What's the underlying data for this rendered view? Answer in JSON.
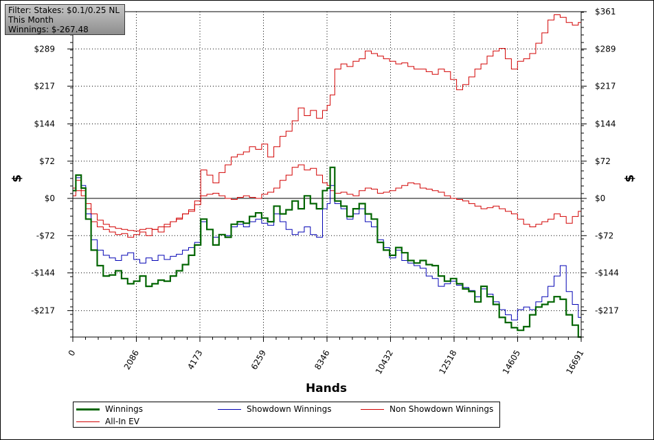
{
  "filter_box": {
    "line1": "Filter: Stakes: $0.1/0.25 NL",
    "line2": "This Month",
    "line3": "Winnings: $-267.48"
  },
  "chart_data": {
    "type": "line",
    "xlabel": "Hands",
    "ylabel_left": "$",
    "ylabel_right": "$",
    "xlim": [
      0,
      16691
    ],
    "ylim": [
      -268,
      361
    ],
    "x_ticks": [
      0,
      2086,
      4173,
      6259,
      8346,
      10432,
      12518,
      14605,
      16691
    ],
    "y_ticks": [
      -217,
      -144,
      -72,
      0,
      72,
      144,
      217,
      289,
      361
    ],
    "y_tick_labels": [
      "-$217",
      "-$144",
      "-$72",
      "$0",
      "$72",
      "$144",
      "$217",
      "$289",
      "$361"
    ],
    "grid": true,
    "legend_position": "bottom",
    "series": [
      {
        "name": "Winnings",
        "color": "#006400",
        "x": [
          0,
          200,
          350,
          500,
          700,
          900,
          1100,
          1300,
          1500,
          1700,
          1900,
          2100,
          2300,
          2500,
          2700,
          2900,
          3100,
          3300,
          3500,
          3700,
          3900,
          4100,
          4300,
          4500,
          4700,
          4900,
          5100,
          5300,
          5500,
          5700,
          5900,
          6100,
          6300,
          6500,
          6700,
          6900,
          7100,
          7300,
          7500,
          7700,
          7900,
          8100,
          8300,
          8400,
          8500,
          8700,
          8900,
          9100,
          9300,
          9500,
          9700,
          9900,
          10100,
          10300,
          10500,
          10700,
          10900,
          11100,
          11300,
          11500,
          11700,
          11900,
          12100,
          12300,
          12500,
          12700,
          12900,
          13100,
          13300,
          13500,
          13700,
          13900,
          14100,
          14300,
          14500,
          14700,
          14900,
          15100,
          15300,
          15500,
          15700,
          15900,
          16100,
          16300,
          16500,
          16691
        ],
        "y": [
          15,
          45,
          20,
          -40,
          -100,
          -130,
          -150,
          -148,
          -140,
          -155,
          -165,
          -160,
          -150,
          -170,
          -165,
          -158,
          -160,
          -150,
          -140,
          -128,
          -110,
          -90,
          -40,
          -60,
          -90,
          -70,
          -75,
          -50,
          -45,
          -48,
          -35,
          -28,
          -38,
          -45,
          -15,
          -30,
          -22,
          -5,
          -20,
          5,
          -10,
          -20,
          15,
          20,
          60,
          -5,
          -15,
          -35,
          -20,
          -10,
          -30,
          -40,
          -85,
          -100,
          -110,
          -95,
          -105,
          -120,
          -125,
          -120,
          -128,
          -130,
          -150,
          -160,
          -155,
          -165,
          -175,
          -180,
          -200,
          -170,
          -190,
          -205,
          -230,
          -240,
          -250,
          -255,
          -248,
          -225,
          -210,
          -205,
          -200,
          -190,
          -195,
          -225,
          -245,
          -268
        ]
      },
      {
        "name": "Showdown Winnings",
        "color": "#0000b4",
        "x": [
          0,
          200,
          350,
          500,
          700,
          900,
          1100,
          1300,
          1500,
          1700,
          1900,
          2100,
          2300,
          2500,
          2700,
          2900,
          3100,
          3300,
          3500,
          3700,
          3900,
          4100,
          4300,
          4500,
          4700,
          4900,
          5100,
          5300,
          5500,
          5700,
          5900,
          6100,
          6300,
          6500,
          6700,
          6900,
          7100,
          7300,
          7500,
          7700,
          7900,
          8100,
          8300,
          8400,
          8500,
          8700,
          8900,
          9100,
          9300,
          9500,
          9700,
          9900,
          10100,
          10300,
          10500,
          10700,
          10900,
          11100,
          11300,
          11500,
          11700,
          11900,
          12100,
          12300,
          12500,
          12700,
          12900,
          13100,
          13300,
          13500,
          13700,
          13900,
          14100,
          14300,
          14500,
          14700,
          14900,
          15100,
          15300,
          15500,
          15700,
          15900,
          16100,
          16300,
          16500,
          16691
        ],
        "y": [
          15,
          40,
          25,
          -30,
          -80,
          -100,
          -110,
          -115,
          -120,
          -110,
          -105,
          -118,
          -125,
          -115,
          -120,
          -110,
          -118,
          -112,
          -108,
          -100,
          -95,
          -85,
          -45,
          -60,
          -75,
          -70,
          -72,
          -55,
          -50,
          -55,
          -45,
          -40,
          -48,
          -52,
          -30,
          -45,
          -60,
          -70,
          -65,
          -55,
          -70,
          -75,
          -20,
          -10,
          25,
          -10,
          -20,
          -40,
          -30,
          -20,
          -45,
          -55,
          -80,
          -95,
          -115,
          -100,
          -120,
          -125,
          -130,
          -135,
          -150,
          -155,
          -170,
          -165,
          -160,
          -168,
          -172,
          -178,
          -190,
          -175,
          -185,
          -200,
          -215,
          -225,
          -235,
          -215,
          -210,
          -215,
          -200,
          -190,
          -170,
          -150,
          -130,
          -180,
          -205,
          -230
        ]
      },
      {
        "name": "Non Showdown Winnings",
        "color": "#d20000",
        "x": [
          0,
          200,
          350,
          500,
          700,
          900,
          1100,
          1300,
          1500,
          1700,
          1900,
          2100,
          2300,
          2500,
          2700,
          2900,
          3100,
          3300,
          3500,
          3700,
          3900,
          4100,
          4300,
          4500,
          4700,
          4900,
          5100,
          5300,
          5500,
          5700,
          5900,
          6100,
          6300,
          6500,
          6700,
          6900,
          7100,
          7300,
          7500,
          7700,
          7900,
          8100,
          8300,
          8400,
          8500,
          8700,
          8900,
          9100,
          9300,
          9500,
          9700,
          9900,
          10100,
          10300,
          10500,
          10700,
          10900,
          11100,
          11300,
          11500,
          11700,
          11900,
          12100,
          12300,
          12500,
          12700,
          12900,
          13100,
          13300,
          13500,
          13700,
          13900,
          14100,
          14300,
          14500,
          14700,
          14900,
          15100,
          15300,
          15500,
          15700,
          15900,
          16100,
          16300,
          16500,
          16691
        ],
        "y": [
          5,
          15,
          5,
          -10,
          -30,
          -42,
          -50,
          -55,
          -58,
          -60,
          -62,
          -63,
          -60,
          -58,
          -60,
          -55,
          -50,
          -45,
          -38,
          -30,
          -22,
          -12,
          5,
          8,
          10,
          5,
          0,
          -2,
          2,
          5,
          2,
          0,
          8,
          12,
          20,
          35,
          45,
          60,
          65,
          55,
          58,
          45,
          30,
          25,
          15,
          10,
          12,
          8,
          5,
          15,
          20,
          18,
          10,
          12,
          15,
          20,
          25,
          30,
          28,
          20,
          18,
          15,
          12,
          5,
          0,
          -2,
          -5,
          -10,
          -15,
          -20,
          -18,
          -15,
          -20,
          -25,
          -30,
          -40,
          -50,
          -55,
          -50,
          -45,
          -40,
          -30,
          -35,
          -48,
          -35,
          -25
        ]
      },
      {
        "name": "All-In EV",
        "color": "#d20000",
        "x": [
          0,
          200,
          350,
          500,
          700,
          900,
          1100,
          1300,
          1500,
          1700,
          1900,
          2100,
          2300,
          2500,
          2700,
          2900,
          3100,
          3300,
          3500,
          3700,
          3900,
          4100,
          4300,
          4500,
          4700,
          4900,
          5100,
          5300,
          5500,
          5700,
          5900,
          6100,
          6300,
          6500,
          6700,
          6900,
          7100,
          7300,
          7500,
          7700,
          7900,
          8100,
          8300,
          8400,
          8500,
          8700,
          8900,
          9100,
          9300,
          9500,
          9700,
          9900,
          10100,
          10300,
          10500,
          10700,
          10900,
          11100,
          11300,
          11500,
          11700,
          11900,
          12100,
          12300,
          12500,
          12700,
          12900,
          13100,
          13300,
          13500,
          13700,
          13900,
          14100,
          14300,
          14500,
          14700,
          14900,
          15100,
          15300,
          15500,
          15700,
          15900,
          16100,
          16300,
          16500,
          16691
        ],
        "y": [
          20,
          35,
          15,
          -20,
          -45,
          -55,
          -60,
          -65,
          -70,
          -68,
          -75,
          -70,
          -65,
          -72,
          -60,
          -65,
          -55,
          -45,
          -40,
          -30,
          -25,
          -5,
          55,
          45,
          30,
          50,
          65,
          80,
          85,
          90,
          100,
          95,
          105,
          80,
          100,
          120,
          130,
          150,
          175,
          160,
          170,
          155,
          170,
          180,
          200,
          250,
          260,
          255,
          265,
          270,
          285,
          280,
          275,
          270,
          265,
          260,
          262,
          255,
          250,
          250,
          245,
          240,
          250,
          245,
          230,
          210,
          220,
          235,
          250,
          260,
          275,
          285,
          290,
          270,
          250,
          265,
          270,
          280,
          300,
          320,
          345,
          355,
          350,
          340,
          335,
          340
        ]
      }
    ]
  },
  "legend": {
    "items": [
      {
        "label": "Winnings",
        "color": "#006400"
      },
      {
        "label": "Showdown Winnings",
        "color": "#0000b4"
      },
      {
        "label": "Non Showdown Winnings",
        "color": "#d20000"
      },
      {
        "label": "All-In EV",
        "color": "#d20000"
      }
    ]
  }
}
